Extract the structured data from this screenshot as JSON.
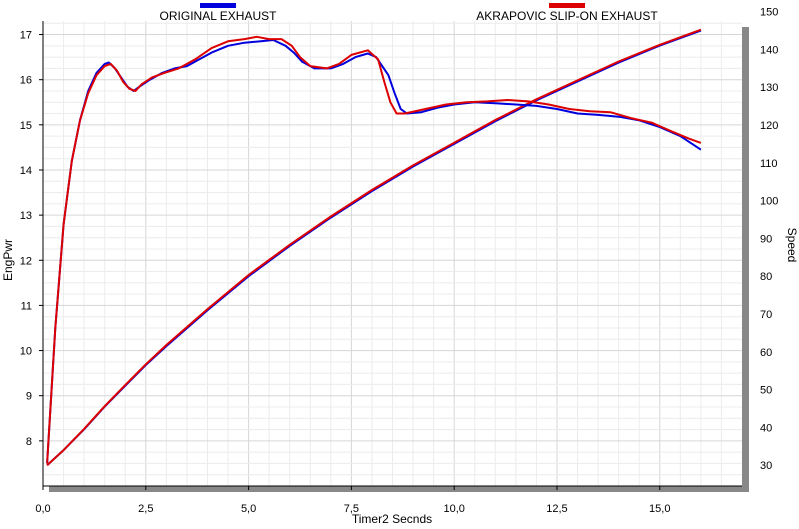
{
  "chart_data": {
    "type": "line",
    "xlabel": "Timer2 Secnds",
    "ylabel_left": "EngPwr",
    "ylabel_right": "Speed",
    "xlim": [
      0,
      17
    ],
    "ylim_left": [
      7,
      17.3
    ],
    "ylim_right": [
      24.5,
      147.5
    ],
    "x_ticks": [
      "0,0",
      "2,5",
      "5,0",
      "7,5",
      "10,0",
      "12,5",
      "15,0"
    ],
    "y_left_ticks": [
      "8",
      "9",
      "10",
      "11",
      "12",
      "13",
      "14",
      "15",
      "16",
      "17"
    ],
    "y_right_ticks": [
      "30",
      "40",
      "50",
      "60",
      "70",
      "80",
      "90",
      "100",
      "110",
      "120",
      "130",
      "140",
      "150"
    ],
    "grid": true,
    "legend": [
      {
        "label": "ORIGINAL EXHAUST",
        "color": "#0000dd"
      },
      {
        "label": "AKRAPOVIC SLIP-ON EXHAUST",
        "color": "#dd0000"
      }
    ],
    "series": [
      {
        "name": "ORIGINAL EXHAUST",
        "metric": "EngPwr",
        "axis": "left",
        "color": "#0000dd",
        "points": [
          [
            0.1,
            7.5
          ],
          [
            0.3,
            10.5
          ],
          [
            0.5,
            12.8
          ],
          [
            0.7,
            14.2
          ],
          [
            0.9,
            15.1
          ],
          [
            1.1,
            15.75
          ],
          [
            1.3,
            16.15
          ],
          [
            1.5,
            16.35
          ],
          [
            1.6,
            16.38
          ],
          [
            1.75,
            16.25
          ],
          [
            1.9,
            16.05
          ],
          [
            2.05,
            15.85
          ],
          [
            2.2,
            15.75
          ],
          [
            2.35,
            15.85
          ],
          [
            2.6,
            16.0
          ],
          [
            2.9,
            16.15
          ],
          [
            3.2,
            16.25
          ],
          [
            3.5,
            16.3
          ],
          [
            3.8,
            16.45
          ],
          [
            4.1,
            16.6
          ],
          [
            4.5,
            16.75
          ],
          [
            4.9,
            16.82
          ],
          [
            5.3,
            16.85
          ],
          [
            5.6,
            16.88
          ],
          [
            5.9,
            16.75
          ],
          [
            6.1,
            16.6
          ],
          [
            6.3,
            16.4
          ],
          [
            6.6,
            16.25
          ],
          [
            7.0,
            16.25
          ],
          [
            7.3,
            16.35
          ],
          [
            7.6,
            16.5
          ],
          [
            7.9,
            16.58
          ],
          [
            8.1,
            16.5
          ],
          [
            8.25,
            16.3
          ],
          [
            8.4,
            16.1
          ],
          [
            8.55,
            15.7
          ],
          [
            8.7,
            15.35
          ],
          [
            8.85,
            15.25
          ],
          [
            9.2,
            15.28
          ],
          [
            9.6,
            15.38
          ],
          [
            10.0,
            15.45
          ],
          [
            10.5,
            15.5
          ],
          [
            11.0,
            15.48
          ],
          [
            11.5,
            15.45
          ],
          [
            12.0,
            15.42
          ],
          [
            12.5,
            15.35
          ],
          [
            13.0,
            15.25
          ],
          [
            13.5,
            15.22
          ],
          [
            14.0,
            15.18
          ],
          [
            14.5,
            15.1
          ],
          [
            15.0,
            14.95
          ],
          [
            15.5,
            14.75
          ],
          [
            16.0,
            14.45
          ]
        ]
      },
      {
        "name": "AKRAPOVIC SLIP-ON EXHAUST",
        "metric": "EngPwr",
        "axis": "left",
        "color": "#dd0000",
        "points": [
          [
            0.1,
            7.5
          ],
          [
            0.3,
            10.5
          ],
          [
            0.5,
            12.8
          ],
          [
            0.7,
            14.2
          ],
          [
            0.9,
            15.1
          ],
          [
            1.1,
            15.7
          ],
          [
            1.3,
            16.1
          ],
          [
            1.5,
            16.3
          ],
          [
            1.65,
            16.35
          ],
          [
            1.8,
            16.2
          ],
          [
            1.95,
            15.95
          ],
          [
            2.1,
            15.8
          ],
          [
            2.25,
            15.75
          ],
          [
            2.4,
            15.9
          ],
          [
            2.65,
            16.05
          ],
          [
            2.95,
            16.15
          ],
          [
            3.3,
            16.25
          ],
          [
            3.7,
            16.45
          ],
          [
            4.1,
            16.7
          ],
          [
            4.5,
            16.85
          ],
          [
            4.9,
            16.9
          ],
          [
            5.2,
            16.95
          ],
          [
            5.5,
            16.9
          ],
          [
            5.8,
            16.9
          ],
          [
            6.05,
            16.75
          ],
          [
            6.25,
            16.5
          ],
          [
            6.5,
            16.3
          ],
          [
            6.9,
            16.25
          ],
          [
            7.2,
            16.35
          ],
          [
            7.5,
            16.55
          ],
          [
            7.9,
            16.65
          ],
          [
            8.15,
            16.45
          ],
          [
            8.3,
            15.95
          ],
          [
            8.45,
            15.5
          ],
          [
            8.6,
            15.25
          ],
          [
            8.8,
            15.25
          ],
          [
            9.3,
            15.35
          ],
          [
            9.8,
            15.45
          ],
          [
            10.3,
            15.5
          ],
          [
            10.8,
            15.52
          ],
          [
            11.3,
            15.55
          ],
          [
            11.8,
            15.52
          ],
          [
            12.3,
            15.45
          ],
          [
            12.8,
            15.35
          ],
          [
            13.3,
            15.3
          ],
          [
            13.8,
            15.28
          ],
          [
            14.3,
            15.15
          ],
          [
            14.8,
            15.05
          ],
          [
            15.3,
            14.85
          ],
          [
            15.7,
            14.7
          ],
          [
            16.0,
            14.6
          ]
        ]
      },
      {
        "name": "ORIGINAL EXHAUST",
        "metric": "Speed",
        "axis": "right",
        "color": "#0000dd",
        "points": [
          [
            0.1,
            30
          ],
          [
            0.5,
            34
          ],
          [
            1.0,
            39.5
          ],
          [
            1.5,
            45.5
          ],
          [
            2.0,
            51
          ],
          [
            2.5,
            56.5
          ],
          [
            3.0,
            61.5
          ],
          [
            4.0,
            71
          ],
          [
            5.0,
            80
          ],
          [
            6.0,
            88
          ],
          [
            7.0,
            95.5
          ],
          [
            8.0,
            102.5
          ],
          [
            9.0,
            109
          ],
          [
            10.0,
            115
          ],
          [
            11.0,
            121
          ],
          [
            12.0,
            126.5
          ],
          [
            13.0,
            131.5
          ],
          [
            14.0,
            136.5
          ],
          [
            15.0,
            141
          ],
          [
            16.0,
            145
          ]
        ]
      },
      {
        "name": "AKRAPOVIC SLIP-ON EXHAUST",
        "metric": "Speed",
        "axis": "right",
        "color": "#dd0000",
        "points": [
          [
            0.1,
            30
          ],
          [
            0.5,
            34
          ],
          [
            1.0,
            39.6
          ],
          [
            1.5,
            45.6
          ],
          [
            2.0,
            51.2
          ],
          [
            2.5,
            56.7
          ],
          [
            3.0,
            61.8
          ],
          [
            4.0,
            71.3
          ],
          [
            5.0,
            80.3
          ],
          [
            6.0,
            88.3
          ],
          [
            7.0,
            95.8
          ],
          [
            8.0,
            102.8
          ],
          [
            9.0,
            109.3
          ],
          [
            10.0,
            115.3
          ],
          [
            11.0,
            121.3
          ],
          [
            12.0,
            126.8
          ],
          [
            13.0,
            131.8
          ],
          [
            14.0,
            136.8
          ],
          [
            15.0,
            141.2
          ],
          [
            16.0,
            145.2
          ]
        ]
      }
    ]
  }
}
